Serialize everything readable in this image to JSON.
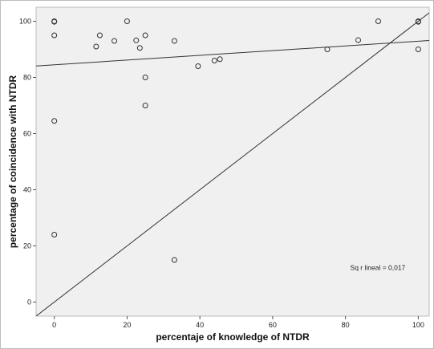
{
  "chart_data": {
    "type": "scatter",
    "title": "",
    "xlabel": "percentaje of knowledge of NTDR",
    "ylabel": "percentage of coincidence with NTDR",
    "xlim": [
      -5,
      103
    ],
    "ylim": [
      -5,
      105
    ],
    "xticks": [
      0,
      20,
      40,
      60,
      80,
      100
    ],
    "yticks": [
      0,
      20,
      40,
      60,
      80,
      100
    ],
    "grid": false,
    "legend": "none",
    "series": [
      {
        "points": [
          {
            "x": 0,
            "y": 100
          },
          {
            "x": 0,
            "y": 99.8
          },
          {
            "x": 0,
            "y": 95
          },
          {
            "x": 0,
            "y": 64.5
          },
          {
            "x": 0,
            "y": 24
          },
          {
            "x": 11.5,
            "y": 91
          },
          {
            "x": 12.5,
            "y": 95
          },
          {
            "x": 16.5,
            "y": 93
          },
          {
            "x": 20,
            "y": 100
          },
          {
            "x": 22.5,
            "y": 93.2
          },
          {
            "x": 23.5,
            "y": 90.5
          },
          {
            "x": 25,
            "y": 95
          },
          {
            "x": 25,
            "y": 80
          },
          {
            "x": 25,
            "y": 70
          },
          {
            "x": 33,
            "y": 93
          },
          {
            "x": 33,
            "y": 15
          },
          {
            "x": 39.5,
            "y": 84
          },
          {
            "x": 44,
            "y": 86
          },
          {
            "x": 45.5,
            "y": 86.5
          },
          {
            "x": 75,
            "y": 90
          },
          {
            "x": 83.5,
            "y": 93.3
          },
          {
            "x": 89,
            "y": 100
          },
          {
            "x": 100,
            "y": 100
          },
          {
            "x": 100,
            "y": 99.8
          },
          {
            "x": 100,
            "y": 90
          }
        ]
      }
    ],
    "fit_line": {
      "intercept": 84.5,
      "slope": 0.084
    },
    "reference_line": {
      "intercept": 0,
      "slope": 1
    },
    "annotation": "Sq r lineal = 0,017",
    "colors": {
      "plot_background": "#f0f0f0",
      "marker_stroke": "#333333",
      "line": "#333333",
      "frame": "#bdbdbd"
    }
  }
}
